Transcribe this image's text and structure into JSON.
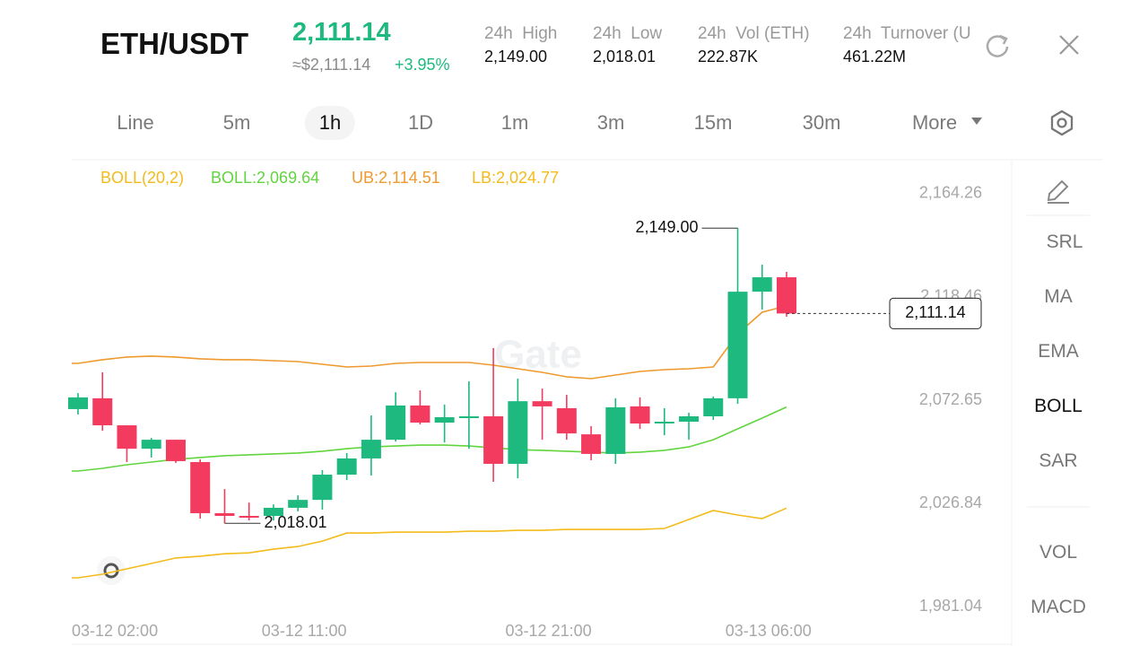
{
  "header": {
    "pair": "ETH/USDT",
    "price": "2,111.14",
    "approx": "≈$2,111.14",
    "change": "+3.95%",
    "stats": [
      {
        "label": "24h  High",
        "value": "2,149.00"
      },
      {
        "label": "24h  Low",
        "value": "2,018.01"
      },
      {
        "label": "24h  Vol (ETH)",
        "value": "222.87K"
      },
      {
        "label": "24h  Turnover (U",
        "value": "461.22M"
      }
    ]
  },
  "tabs": [
    "Line",
    "5m",
    "1h",
    "1D",
    "1m",
    "3m",
    "15m",
    "30m",
    "More"
  ],
  "active_tab": "1h",
  "side_menu": [
    "SRL",
    "MA",
    "EMA",
    "BOLL",
    "SAR",
    "VOL",
    "MACD"
  ],
  "active_side": "BOLL",
  "watermark": "Gate",
  "chart_data": {
    "type": "candlestick",
    "indicator": "BOLL(20,2)",
    "categories": [
      "03-12 02:00",
      null,
      null,
      null,
      null,
      null,
      null,
      null,
      null,
      "03-12 11:00",
      null,
      null,
      null,
      null,
      null,
      null,
      null,
      null,
      null,
      "03-12 21:00",
      null,
      null,
      null,
      null,
      null,
      null,
      null,
      null,
      "03-13 06:00",
      null
    ],
    "up_color": "#1db97f",
    "down_color": "#f33b5f",
    "series": {
      "open": [
        2068.7,
        2073.5,
        2061.5,
        2051.1,
        2055.1,
        2045.2,
        2022.5,
        2021.3,
        2021.3,
        2024.9,
        2028.4,
        2039.6,
        2046.8,
        2055.1,
        2070.3,
        2062.7,
        2065.1,
        2065.5,
        2044.4,
        2072.2,
        2069.1,
        2057.5,
        2048.8,
        2069.9,
        2062.3,
        2063.1,
        2065.5,
        2073.5,
        2120.8,
        2127.2
      ],
      "high": [
        2075.8,
        2085.0,
        2061.5,
        2055.9,
        2055.1,
        2046.4,
        2033.2,
        2027.2,
        2026.4,
        2030.4,
        2041.6,
        2049.2,
        2065.9,
        2076.2,
        2077.0,
        2070.7,
        2081.0,
        2095.8,
        2082.2,
        2077.8,
        2075.0,
        2061.1,
        2073.5,
        2073.9,
        2069.1,
        2067.1,
        2074.3,
        2149.0,
        2132.8,
        2129.6
      ],
      "low": [
        2066.3,
        2059.1,
        2045.2,
        2047.2,
        2044.8,
        2020.1,
        2018.01,
        2019.3,
        2019.3,
        2023.3,
        2024.1,
        2037.2,
        2039.2,
        2054.3,
        2061.9,
        2053.9,
        2051.1,
        2036.4,
        2038.0,
        2055.1,
        2055.1,
        2046.0,
        2044.4,
        2059.9,
        2057.1,
        2055.1,
        2063.9,
        2071.0,
        2112.9,
        2109.7
      ],
      "close": [
        2073.9,
        2061.5,
        2051.1,
        2055.1,
        2045.6,
        2022.5,
        2021.3,
        2020.5,
        2024.9,
        2028.4,
        2039.6,
        2046.8,
        2055.1,
        2070.3,
        2062.7,
        2065.1,
        2065.5,
        2044.4,
        2072.2,
        2069.9,
        2057.9,
        2048.8,
        2069.5,
        2062.3,
        2063.1,
        2065.5,
        2073.5,
        2120.8,
        2127.2,
        2111.14
      ]
    },
    "bands": [
      {
        "name": "UB:2,114.51",
        "color": "#ee9a2e",
        "values": [
          2089.0,
          2090.6,
          2091.8,
          2092.2,
          2091.8,
          2091.0,
          2090.6,
          2090.6,
          2090.2,
          2089.8,
          2088.6,
          2087.4,
          2087.8,
          2089.0,
          2089.4,
          2089.4,
          2089.4,
          2088.2,
          2086.6,
          2085.0,
          2083.0,
          2082.2,
          2083.8,
          2085.4,
          2086.2,
          2086.6,
          2087.4,
          2102.1,
          2111.7,
          2114.51
        ]
      },
      {
        "name": "BOLL:2,069.64",
        "color": "#62d43f",
        "values": [
          2041.2,
          2042.4,
          2044.0,
          2045.2,
          2046.4,
          2047.2,
          2048.0,
          2048.4,
          2048.8,
          2049.2,
          2050.0,
          2051.1,
          2051.9,
          2052.3,
          2052.7,
          2052.7,
          2052.3,
          2051.5,
          2050.7,
          2050.4,
          2050.0,
          2049.6,
          2049.2,
          2049.6,
          2050.4,
          2051.9,
          2055.1,
          2059.9,
          2064.7,
          2069.64
        ]
      },
      {
        "name": "LB:2,024.77",
        "color": "#f3bb1b",
        "values": [
          1993.8,
          1995.4,
          1997.8,
          2000.2,
          2002.6,
          2003.4,
          2004.5,
          2004.9,
          2006.5,
          2007.7,
          2010.1,
          2013.7,
          2013.7,
          2014.1,
          2014.1,
          2014.1,
          2014.5,
          2014.5,
          2014.9,
          2014.9,
          2015.3,
          2015.3,
          2015.3,
          2015.3,
          2015.7,
          2019.7,
          2023.7,
          2021.7,
          2020.1,
          2024.77
        ]
      }
    ],
    "ylim": [
      1975.5,
      2174.6
    ],
    "yticks": [
      {
        "value": 2164.26,
        "label": "2,164.26"
      },
      {
        "value": 2118.46,
        "label": "2,118.46"
      },
      {
        "value": 2072.65,
        "label": "2,072.65"
      },
      {
        "value": 2026.84,
        "label": "2,026.84"
      },
      {
        "value": 1981.04,
        "label": "1,981.04"
      }
    ],
    "high_label": {
      "value": 2149.0,
      "label": "2,149.00"
    },
    "low_label": {
      "value": 2018.01,
      "label": "2,018.01"
    },
    "last_price": {
      "value": 2111.14,
      "label": "2,111.14"
    }
  }
}
